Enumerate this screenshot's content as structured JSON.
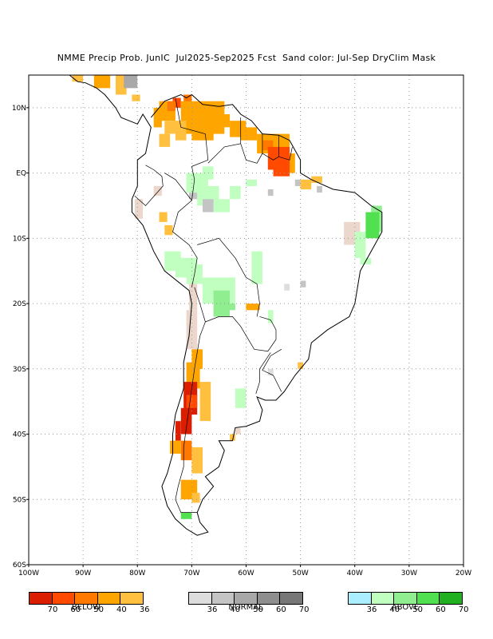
{
  "title": "NMME Precip Prob. JunIC  Jul2025-Sep2025 Fcst  Sand color: Jul-Sep DryClim Mask",
  "map": {
    "lon_range": [
      -100,
      -20
    ],
    "lat_range": [
      -60,
      15
    ],
    "x_ticks": [
      "100W",
      "90W",
      "80W",
      "70W",
      "60W",
      "50W",
      "40W",
      "30W",
      "20W"
    ],
    "y_ticks": [
      "10N",
      "EQ",
      "10S",
      "20S",
      "30S",
      "40S",
      "50S",
      "60S"
    ],
    "grid": "dotted",
    "colors": {
      "sand": "#ecd7cc",
      "below": [
        "#ffc040",
        "#ffa500",
        "#ff7800",
        "#ff4a00",
        "#dc1e00"
      ],
      "normal": [
        "#dddddd",
        "#c4c4c4",
        "#a8a8a8",
        "#8e8e8e",
        "#777777"
      ],
      "above": [
        "#aaeeff",
        "#c0ffc0",
        "#90ee90",
        "#50e050",
        "#20b020"
      ]
    }
  },
  "legends": [
    {
      "name": "below",
      "category": "BELOW",
      "colors": [
        "#dc1e00",
        "#ff4a00",
        "#ff7800",
        "#ffa500",
        "#ffc040"
      ],
      "labels": [
        "70",
        "60",
        "50",
        "40",
        "36"
      ]
    },
    {
      "name": "normal",
      "category": "NORMAL",
      "colors": [
        "#dddddd",
        "#c4c4c4",
        "#a8a8a8",
        "#8e8e8e",
        "#777777"
      ],
      "labels": [
        "36",
        "40",
        "50",
        "60",
        "70"
      ]
    },
    {
      "name": "above",
      "category": "ABOVE",
      "colors": [
        "#aaeeff",
        "#c0ffc0",
        "#90ee90",
        "#50e050",
        "#20b020"
      ],
      "labels": [
        "36",
        "40",
        "50",
        "60",
        "70"
      ]
    }
  ]
}
